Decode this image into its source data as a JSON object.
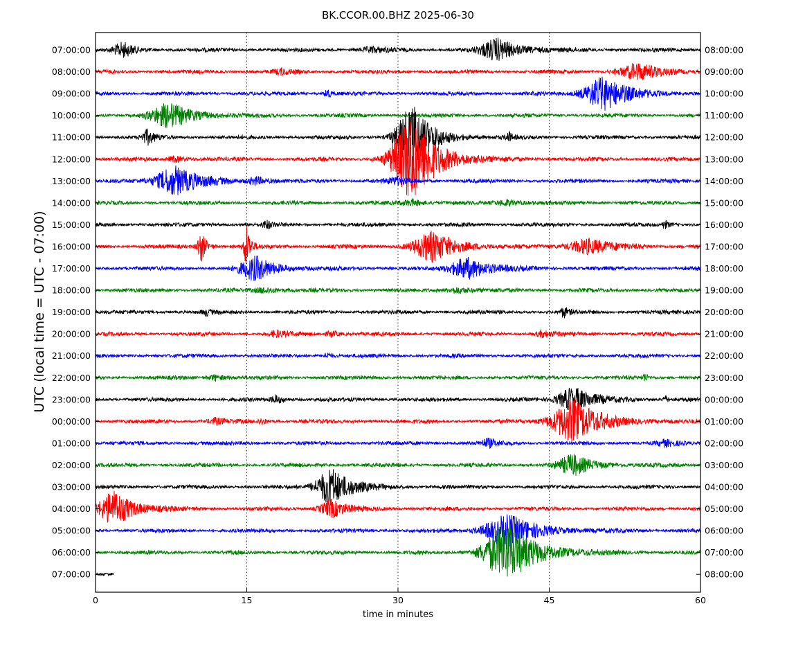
{
  "chart_data": {
    "type": "line",
    "title": "BK.CCOR.00.BHZ 2025-06-30",
    "xlabel": "time in minutes",
    "ylabel": "UTC (local time = UTC - 07:00)",
    "xlim": [
      0,
      60
    ],
    "xticks": [
      "0",
      "15",
      "30",
      "45",
      "60"
    ],
    "grid": "vertical dotted at 15, 30, 45",
    "color_cycle": [
      "#000000",
      "#ff0000",
      "#0000ff",
      "#008000"
    ],
    "rows_left_labels": [
      "07:00:00",
      "08:00:00",
      "09:00:00",
      "10:00:00",
      "11:00:00",
      "12:00:00",
      "13:00:00",
      "14:00:00",
      "15:00:00",
      "16:00:00",
      "17:00:00",
      "18:00:00",
      "19:00:00",
      "20:00:00",
      "21:00:00",
      "22:00:00",
      "23:00:00",
      "00:00:00",
      "01:00:00",
      "02:00:00",
      "03:00:00",
      "04:00:00",
      "05:00:00",
      "06:00:00",
      "07:00:00"
    ],
    "rows_right_labels": [
      "08:00:00",
      "09:00:00",
      "10:00:00",
      "11:00:00",
      "12:00:00",
      "13:00:00",
      "14:00:00",
      "15:00:00",
      "16:00:00",
      "17:00:00",
      "18:00:00",
      "19:00:00",
      "20:00:00",
      "21:00:00",
      "22:00:00",
      "23:00:00",
      "00:00:00",
      "01:00:00",
      "02:00:00",
      "03:00:00",
      "04:00:00",
      "05:00:00",
      "06:00:00",
      "07:00:00",
      "08:00:00"
    ],
    "events": [
      {
        "row": 0,
        "minute": 2.8,
        "amp": 0.7,
        "dur": 2.5
      },
      {
        "row": 0,
        "minute": 40.0,
        "amp": 1.1,
        "dur": 4.5
      },
      {
        "row": 0,
        "minute": 27.5,
        "amp": 0.25,
        "dur": 3
      },
      {
        "row": 1,
        "minute": 54.0,
        "amp": 0.8,
        "dur": 5
      },
      {
        "row": 1,
        "minute": 18.5,
        "amp": 0.25,
        "dur": 2
      },
      {
        "row": 2,
        "minute": 50.5,
        "amp": 1.7,
        "dur": 5
      },
      {
        "row": 2,
        "minute": 23.0,
        "amp": 0.5,
        "dur": 0.8
      },
      {
        "row": 3,
        "minute": 7.5,
        "amp": 1.2,
        "dur": 5
      },
      {
        "row": 4,
        "minute": 5.2,
        "amp": 0.7,
        "dur": 1.5
      },
      {
        "row": 4,
        "minute": 41.0,
        "amp": 0.5,
        "dur": 0.6
      },
      {
        "row": 4,
        "minute": 31.5,
        "amp": 3.2,
        "dur": 4
      },
      {
        "row": 5,
        "minute": 31.5,
        "amp": 4.5,
        "dur": 5
      },
      {
        "row": 5,
        "minute": 8.0,
        "amp": 0.3,
        "dur": 2
      },
      {
        "row": 6,
        "minute": 8.0,
        "amp": 1.5,
        "dur": 5
      },
      {
        "row": 6,
        "minute": 16.0,
        "amp": 0.4,
        "dur": 2
      },
      {
        "row": 6,
        "minute": 30.0,
        "amp": 0.3,
        "dur": 3
      },
      {
        "row": 7,
        "minute": 31.5,
        "amp": 0.3,
        "dur": 3
      },
      {
        "row": 7,
        "minute": 41.0,
        "amp": 0.3,
        "dur": 3
      },
      {
        "row": 8,
        "minute": 17.0,
        "amp": 0.4,
        "dur": 1
      },
      {
        "row": 8,
        "minute": 56.5,
        "amp": 0.4,
        "dur": 1
      },
      {
        "row": 9,
        "minute": 10.5,
        "amp": 1.6,
        "dur": 1
      },
      {
        "row": 9,
        "minute": 15.0,
        "amp": 2.2,
        "dur": 0.8
      },
      {
        "row": 9,
        "minute": 33.5,
        "amp": 1.5,
        "dur": 5
      },
      {
        "row": 9,
        "minute": 49.0,
        "amp": 0.8,
        "dur": 5
      },
      {
        "row": 10,
        "minute": 16.0,
        "amp": 1.2,
        "dur": 4
      },
      {
        "row": 10,
        "minute": 37.0,
        "amp": 1.1,
        "dur": 4.5
      },
      {
        "row": 11,
        "minute": 17.0,
        "amp": 0.3,
        "dur": 3
      },
      {
        "row": 11,
        "minute": 36.0,
        "amp": 0.3,
        "dur": 3
      },
      {
        "row": 12,
        "minute": 46.5,
        "amp": 0.5,
        "dur": 1
      },
      {
        "row": 12,
        "minute": 11.0,
        "amp": 0.3,
        "dur": 1
      },
      {
        "row": 13,
        "minute": 18.0,
        "amp": 0.3,
        "dur": 2
      },
      {
        "row": 13,
        "minute": 23.5,
        "amp": 0.3,
        "dur": 1.5
      },
      {
        "row": 13,
        "minute": 44.5,
        "amp": 0.3,
        "dur": 2
      },
      {
        "row": 14,
        "minute": 23.0,
        "amp": 0.3,
        "dur": 1
      },
      {
        "row": 15,
        "minute": 12.0,
        "amp": 0.3,
        "dur": 2
      },
      {
        "row": 15,
        "minute": 54.5,
        "amp": 0.4,
        "dur": 0.6
      },
      {
        "row": 16,
        "minute": 18.0,
        "amp": 0.4,
        "dur": 1.5
      },
      {
        "row": 16,
        "minute": 56.5,
        "amp": 0.4,
        "dur": 0.6
      },
      {
        "row": 16,
        "minute": 47.5,
        "amp": 1.3,
        "dur": 4
      },
      {
        "row": 17,
        "minute": 47.5,
        "amp": 2.2,
        "dur": 5.5
      },
      {
        "row": 17,
        "minute": 12.0,
        "amp": 0.3,
        "dur": 2
      },
      {
        "row": 17,
        "minute": 16.5,
        "amp": 0.3,
        "dur": 1
      },
      {
        "row": 18,
        "minute": 39.0,
        "amp": 0.4,
        "dur": 2
      },
      {
        "row": 18,
        "minute": 56.5,
        "amp": 0.3,
        "dur": 2
      },
      {
        "row": 19,
        "minute": 47.5,
        "amp": 1.0,
        "dur": 4
      },
      {
        "row": 20,
        "minute": 23.5,
        "amp": 1.9,
        "dur": 4
      },
      {
        "row": 21,
        "minute": 2.0,
        "amp": 1.8,
        "dur": 4
      },
      {
        "row": 21,
        "minute": 23.5,
        "amp": 0.9,
        "dur": 3
      },
      {
        "row": 22,
        "minute": 41.0,
        "amp": 1.6,
        "dur": 6
      },
      {
        "row": 23,
        "minute": 41.0,
        "amp": 2.9,
        "dur": 6
      }
    ]
  }
}
